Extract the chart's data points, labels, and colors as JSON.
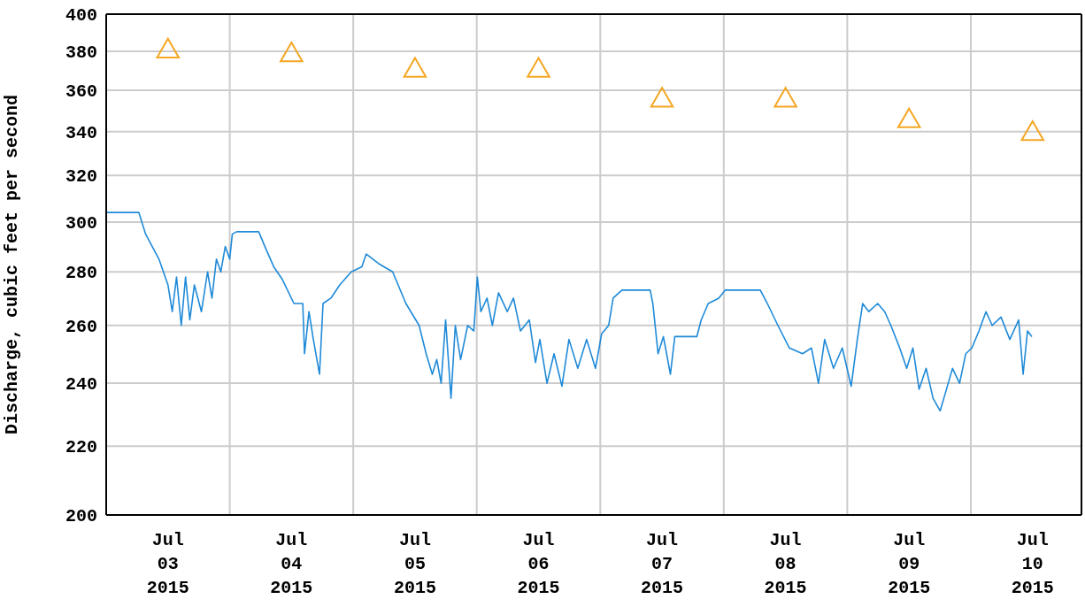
{
  "chart_data": {
    "type": "line",
    "ylabel": "Discharge, cubic feet per second",
    "log": "y",
    "grid": true,
    "legend": false,
    "xlim": [
      "2015-07-03T00:00",
      "2015-07-10T21:30"
    ],
    "xticks": [
      {
        "value": "2015-07-03T12:00",
        "label": "Jul\n03\n2015"
      },
      {
        "value": "2015-07-04T00:00",
        "label": null
      },
      {
        "value": "2015-07-04T12:00",
        "label": "Jul\n04\n2015"
      },
      {
        "value": "2015-07-05T00:00",
        "label": null
      },
      {
        "value": "2015-07-05T12:00",
        "label": "Jul\n05\n2015"
      },
      {
        "value": "2015-07-06T00:00",
        "label": null
      },
      {
        "value": "2015-07-06T12:00",
        "label": "Jul\n06\n2015"
      },
      {
        "value": "2015-07-07T00:00",
        "label": null
      },
      {
        "value": "2015-07-07T12:00",
        "label": "Jul\n07\n2015"
      },
      {
        "value": "2015-07-08T00:00",
        "label": null
      },
      {
        "value": "2015-07-08T12:00",
        "label": "Jul\n08\n2015"
      },
      {
        "value": "2015-07-09T00:00",
        "label": null
      },
      {
        "value": "2015-07-09T12:00",
        "label": "Jul\n09\n2015"
      },
      {
        "value": "2015-07-10T00:00",
        "label": null
      },
      {
        "value": "2015-07-10T12:00",
        "label": "Jul\n10\n2015"
      }
    ],
    "ylim": [
      200,
      400
    ],
    "yticks": [
      200,
      220,
      240,
      260,
      280,
      300,
      320,
      340,
      360,
      380,
      400
    ],
    "series": [
      {
        "color": "#1f8ad8",
        "marker": "none",
        "line_style": "solid",
        "x": [
          "2015-07-03T00:00",
          "2015-07-03T06:20",
          "2015-07-03T07:40",
          "2015-07-03T10:15",
          "2015-07-03T12:00",
          "2015-07-03T12:50",
          "2015-07-03T13:40",
          "2015-07-03T14:35",
          "2015-07-03T15:25",
          "2015-07-03T16:15",
          "2015-07-03T17:08",
          "2015-07-03T18:30",
          "2015-07-03T19:42",
          "2015-07-03T20:33",
          "2015-07-03T21:25",
          "2015-07-03T22:16",
          "2015-07-03T23:08",
          "2015-07-04T00:00",
          "2015-07-04T00:30",
          "2015-07-04T01:21",
          "2015-07-04T05:38",
          "2015-07-04T06:50",
          "2015-07-04T08:33",
          "2015-07-04T10:15",
          "2015-07-04T12:29",
          "2015-07-04T14:12",
          "2015-07-04T14:32",
          "2015-07-04T15:24",
          "2015-07-04T16:15",
          "2015-07-04T17:27",
          "2015-07-04T18:08",
          "2015-07-04T19:40",
          "2015-07-04T21:23",
          "2015-07-04T23:37",
          "2015-07-05T01:40",
          "2015-07-05T02:32",
          "2015-07-05T05:06",
          "2015-07-05T07:40",
          "2015-07-05T10:14",
          "2015-07-05T12:48",
          "2015-07-05T14:10",
          "2015-07-05T15:22",
          "2015-07-05T16:14",
          "2015-07-05T17:05",
          "2015-07-05T17:57",
          "2015-07-05T19:00",
          "2015-07-05T19:50",
          "2015-07-05T20:52",
          "2015-07-05T22:14",
          "2015-07-05T23:26",
          "2015-07-06T00:07",
          "2015-07-06T00:48",
          "2015-07-06T02:00",
          "2015-07-06T03:02",
          "2015-07-06T04:14",
          "2015-07-06T05:56",
          "2015-07-06T07:08",
          "2015-07-06T08:30",
          "2015-07-06T10:13",
          "2015-07-06T11:25",
          "2015-07-06T12:16",
          "2015-07-06T13:39",
          "2015-07-06T15:01",
          "2015-07-06T16:33",
          "2015-07-06T17:55",
          "2015-07-06T19:38",
          "2015-07-06T21:21",
          "2015-07-06T23:04",
          "2015-07-07T00:16",
          "2015-07-07T01:38",
          "2015-07-07T02:30",
          "2015-07-07T04:13",
          "2015-07-07T09:42",
          "2015-07-07T10:13",
          "2015-07-07T11:14",
          "2015-07-07T12:16",
          "2015-07-07T13:38",
          "2015-07-07T14:29",
          "2015-07-07T18:46",
          "2015-07-07T19:37",
          "2015-07-07T20:59",
          "2015-07-07T23:02",
          "2015-07-08T00:15",
          "2015-07-08T07:06",
          "2015-07-08T08:28",
          "2015-07-08T10:31",
          "2015-07-08T12:45",
          "2015-07-08T15:19",
          "2015-07-08T17:02",
          "2015-07-08T18:24",
          "2015-07-08T19:36",
          "2015-07-08T21:19",
          "2015-07-08T23:02",
          "2015-07-09T00:45",
          "2015-07-09T01:57",
          "2015-07-09T02:59",
          "2015-07-09T04:11",
          "2015-07-09T05:54",
          "2015-07-09T07:16",
          "2015-07-09T08:28",
          "2015-07-09T10:11",
          "2015-07-09T11:33",
          "2015-07-09T12:45",
          "2015-07-09T13:57",
          "2015-07-09T15:19",
          "2015-07-09T16:41",
          "2015-07-09T18:03",
          "2015-07-09T19:06",
          "2015-07-09T20:27",
          "2015-07-09T21:49",
          "2015-07-09T23:01",
          "2015-07-10T00:13",
          "2015-07-10T01:35",
          "2015-07-10T02:57",
          "2015-07-10T04:09",
          "2015-07-10T05:52",
          "2015-07-10T07:35",
          "2015-07-10T09:18",
          "2015-07-10T10:10",
          "2015-07-10T11:01",
          "2015-07-10T11:52"
        ],
        "values": [
          304,
          304,
          295,
          285,
          275,
          265,
          278,
          260,
          278,
          262,
          275,
          265,
          280,
          270,
          285,
          280,
          290,
          285,
          295,
          296,
          296,
          290,
          282,
          277,
          268,
          268,
          250,
          265,
          255,
          243,
          268,
          270,
          275,
          280,
          282,
          287,
          283,
          280,
          268,
          260,
          250,
          243,
          248,
          240,
          262,
          235,
          260,
          248,
          260,
          258,
          278,
          265,
          270,
          260,
          272,
          265,
          270,
          258,
          262,
          247,
          255,
          240,
          250,
          239,
          255,
          245,
          255,
          245,
          257,
          260,
          270,
          273,
          273,
          268,
          250,
          256,
          243,
          256,
          256,
          262,
          268,
          270,
          273,
          273,
          268,
          260,
          252,
          250,
          252,
          240,
          255,
          245,
          252,
          239,
          255,
          268,
          265,
          268,
          265,
          260,
          252,
          245,
          252,
          238,
          245,
          235,
          231,
          237,
          245,
          240,
          250,
          252,
          258,
          265,
          260,
          263,
          255,
          262,
          243,
          258,
          256
        ]
      },
      {
        "type": "scatter",
        "color": "#f5a623",
        "marker": "triangle",
        "x": [
          "2015-07-03T12:00",
          "2015-07-04T12:00",
          "2015-07-05T12:00",
          "2015-07-06T12:00",
          "2015-07-07T12:00",
          "2015-07-08T12:00",
          "2015-07-09T12:00",
          "2015-07-10T12:00"
        ],
        "values": [
          380,
          378,
          370,
          370,
          355,
          355,
          345,
          339
        ]
      }
    ]
  }
}
